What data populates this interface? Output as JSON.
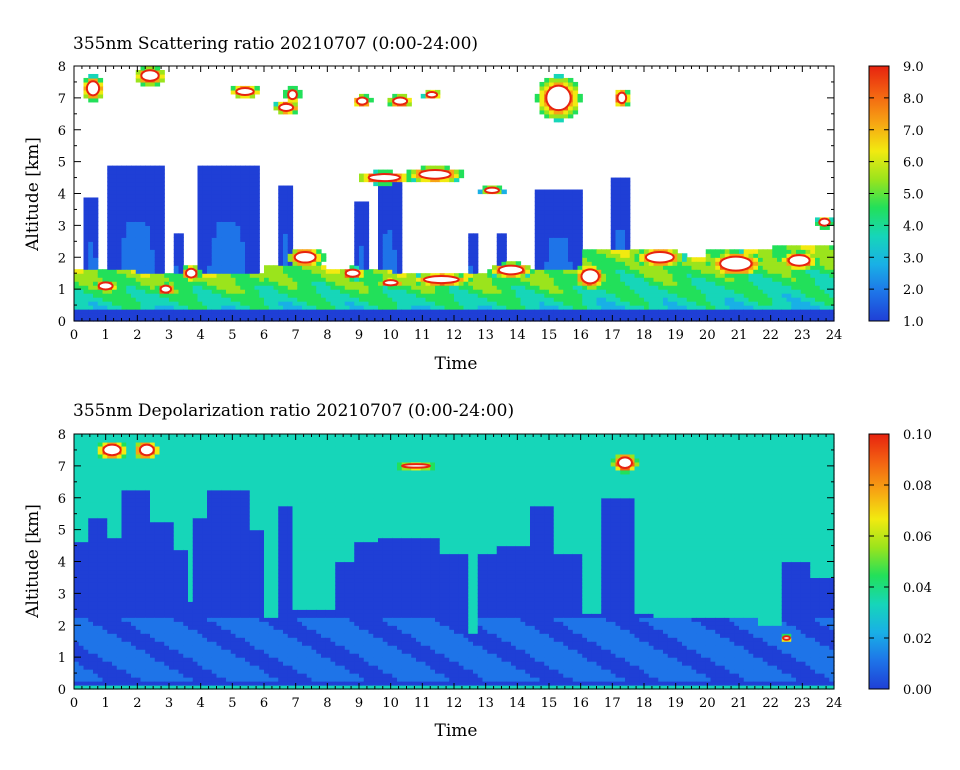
{
  "chart_data": [
    {
      "type": "heatmap",
      "title": "355nm Scattering ratio  20210707 (0:00-24:00)",
      "xlabel": "Time",
      "ylabel": "Altitude [km]",
      "xlim": [
        0,
        24
      ],
      "ylim": [
        0,
        8
      ],
      "x_ticks": [
        "0",
        "1",
        "2",
        "3",
        "4",
        "5",
        "6",
        "7",
        "8",
        "9",
        "10",
        "11",
        "12",
        "13",
        "14",
        "15",
        "16",
        "17",
        "18",
        "19",
        "20",
        "21",
        "22",
        "23",
        "24"
      ],
      "y_ticks": [
        "0",
        "1",
        "2",
        "3",
        "4",
        "5",
        "6",
        "7",
        "8"
      ],
      "colorbar": {
        "range": [
          1.0,
          9.0
        ],
        "ticks": [
          "1.0",
          "2.0",
          "3.0",
          "4.0",
          "5.0",
          "6.0",
          "7.0",
          "8.0",
          "9.0"
        ],
        "colors": [
          "#1f3fd6",
          "#1e74e8",
          "#19b0e6",
          "#16d6b9",
          "#22e05a",
          "#9be41c",
          "#f2ea10",
          "#f7a413",
          "#f36312",
          "#e7230f"
        ]
      },
      "boundary_layer": [
        {
          "t0": 0,
          "t1": 2,
          "top": 1.6
        },
        {
          "t0": 2,
          "t1": 4,
          "top": 1.5
        },
        {
          "t0": 4,
          "t1": 6,
          "top": 1.5
        },
        {
          "t0": 6,
          "t1": 8,
          "top": 1.8
        },
        {
          "t0": 8,
          "t1": 10,
          "top": 1.6
        },
        {
          "t0": 10,
          "t1": 12,
          "top": 1.5
        },
        {
          "t0": 12,
          "t1": 14,
          "top": 1.5
        },
        {
          "t0": 14,
          "t1": 16,
          "top": 1.6
        },
        {
          "t0": 16,
          "t1": 18,
          "top": 2.2
        },
        {
          "t0": 18,
          "t1": 20,
          "top": 2.0
        },
        {
          "t0": 20,
          "t1": 22,
          "top": 2.2
        },
        {
          "t0": 22,
          "t1": 24,
          "top": 2.4
        }
      ],
      "plumes": [
        {
          "t0": 0.3,
          "t1": 0.8,
          "top": 3.9
        },
        {
          "t0": 1.1,
          "t1": 2.9,
          "top": 4.9
        },
        {
          "t0": 3.1,
          "t1": 3.4,
          "top": 2.7
        },
        {
          "t0": 3.9,
          "t1": 5.8,
          "top": 4.9
        },
        {
          "t0": 6.5,
          "t1": 6.9,
          "top": 4.3
        },
        {
          "t0": 8.9,
          "t1": 9.3,
          "top": 3.7
        },
        {
          "t0": 9.6,
          "t1": 10.3,
          "top": 4.5
        },
        {
          "t0": 12.4,
          "t1": 12.7,
          "top": 2.8
        },
        {
          "t0": 13.4,
          "t1": 13.6,
          "top": 2.8
        },
        {
          "t0": 14.6,
          "t1": 16.0,
          "top": 4.1
        },
        {
          "t0": 16.9,
          "t1": 17.6,
          "top": 4.5
        }
      ],
      "cloud_cells": [
        {
          "t": 0.6,
          "z": 7.3,
          "rt": 0.35,
          "rz": 0.4,
          "peak": 9
        },
        {
          "t": 2.4,
          "z": 7.7,
          "rt": 0.5,
          "rz": 0.3,
          "peak": 9
        },
        {
          "t": 5.4,
          "z": 7.2,
          "rt": 0.5,
          "rz": 0.2,
          "peak": 9
        },
        {
          "t": 6.7,
          "z": 6.7,
          "rt": 0.4,
          "rz": 0.2,
          "peak": 9
        },
        {
          "t": 6.9,
          "z": 7.1,
          "rt": 0.25,
          "rz": 0.25,
          "peak": 9
        },
        {
          "t": 9.1,
          "z": 6.9,
          "rt": 0.3,
          "rz": 0.2,
          "peak": 9
        },
        {
          "t": 10.3,
          "z": 6.9,
          "rt": 0.4,
          "rz": 0.2,
          "peak": 9
        },
        {
          "t": 11.3,
          "z": 7.1,
          "rt": 0.3,
          "rz": 0.15,
          "peak": 8
        },
        {
          "t": 15.3,
          "z": 7.0,
          "rt": 0.7,
          "rz": 0.7,
          "peak": 9
        },
        {
          "t": 17.3,
          "z": 7.0,
          "rt": 0.25,
          "rz": 0.3,
          "peak": 9
        },
        {
          "t": 9.8,
          "z": 4.5,
          "rt": 0.9,
          "rz": 0.2,
          "peak": 9
        },
        {
          "t": 11.4,
          "z": 4.6,
          "rt": 0.9,
          "rz": 0.25,
          "peak": 9
        },
        {
          "t": 13.2,
          "z": 4.1,
          "rt": 0.4,
          "rz": 0.15,
          "peak": 7
        },
        {
          "t": 1.0,
          "z": 1.1,
          "rt": 0.4,
          "rz": 0.2,
          "peak": 9
        },
        {
          "t": 2.9,
          "z": 1.0,
          "rt": 0.3,
          "rz": 0.2,
          "peak": 9
        },
        {
          "t": 3.7,
          "z": 1.5,
          "rt": 0.3,
          "rz": 0.25,
          "peak": 9
        },
        {
          "t": 7.3,
          "z": 2.0,
          "rt": 0.6,
          "rz": 0.3,
          "peak": 9
        },
        {
          "t": 8.8,
          "z": 1.5,
          "rt": 0.4,
          "rz": 0.2,
          "peak": 9
        },
        {
          "t": 10.0,
          "z": 1.2,
          "rt": 0.4,
          "rz": 0.15,
          "peak": 9
        },
        {
          "t": 11.6,
          "z": 1.3,
          "rt": 1.0,
          "rz": 0.2,
          "peak": 9
        },
        {
          "t": 13.8,
          "z": 1.6,
          "rt": 0.7,
          "rz": 0.25,
          "peak": 9
        },
        {
          "t": 16.3,
          "z": 1.4,
          "rt": 0.5,
          "rz": 0.4,
          "peak": 9
        },
        {
          "t": 18.5,
          "z": 2.0,
          "rt": 0.8,
          "rz": 0.3,
          "peak": 9
        },
        {
          "t": 20.9,
          "z": 1.8,
          "rt": 0.9,
          "rz": 0.4,
          "peak": 9
        },
        {
          "t": 22.9,
          "z": 1.9,
          "rt": 0.6,
          "rz": 0.3,
          "peak": 9
        },
        {
          "t": 23.7,
          "z": 3.1,
          "rt": 0.3,
          "rz": 0.2,
          "peak": 7
        }
      ]
    },
    {
      "type": "heatmap",
      "title": "355nm Depolarization ratio  20210707 (0:00-24:00)",
      "xlabel": "Time",
      "ylabel": "Altitude [km]",
      "xlim": [
        0,
        24
      ],
      "ylim": [
        0,
        8
      ],
      "x_ticks": [
        "0",
        "1",
        "2",
        "3",
        "4",
        "5",
        "6",
        "7",
        "8",
        "9",
        "10",
        "11",
        "12",
        "13",
        "14",
        "15",
        "16",
        "17",
        "18",
        "19",
        "20",
        "21",
        "22",
        "23",
        "24"
      ],
      "y_ticks": [
        "0",
        "1",
        "2",
        "3",
        "4",
        "5",
        "6",
        "7",
        "8"
      ],
      "colorbar": {
        "range": [
          0.0,
          0.1
        ],
        "ticks": [
          "0.00",
          "0.02",
          "0.04",
          "0.06",
          "0.08",
          "0.10"
        ],
        "colors": [
          "#1f3fd6",
          "#1e74e8",
          "#19b0e6",
          "#16d6b9",
          "#22e05a",
          "#9be41c",
          "#f2ea10",
          "#f7a413",
          "#f36312",
          "#e7230f"
        ]
      },
      "background_value": 0.04,
      "low_depol_columns": [
        {
          "t0": 0.0,
          "t1": 0.4,
          "top": 4.6
        },
        {
          "t0": 0.4,
          "t1": 1.1,
          "top": 5.4
        },
        {
          "t0": 1.1,
          "t1": 1.5,
          "top": 4.8
        },
        {
          "t0": 1.5,
          "t1": 2.4,
          "top": 6.2
        },
        {
          "t0": 2.4,
          "t1": 3.1,
          "top": 5.2
        },
        {
          "t0": 3.1,
          "t1": 3.6,
          "top": 4.4
        },
        {
          "t0": 3.6,
          "t1": 3.8,
          "top": 2.8
        },
        {
          "t0": 3.8,
          "t1": 4.2,
          "top": 5.4
        },
        {
          "t0": 4.2,
          "t1": 5.5,
          "top": 6.2
        },
        {
          "t0": 5.5,
          "t1": 6.0,
          "top": 5.0
        },
        {
          "t0": 6.0,
          "t1": 6.5,
          "top": 2.3
        },
        {
          "t0": 6.5,
          "t1": 6.9,
          "top": 5.8
        },
        {
          "t0": 6.9,
          "t1": 8.2,
          "top": 2.5
        },
        {
          "t0": 8.2,
          "t1": 8.8,
          "top": 4.0
        },
        {
          "t0": 8.8,
          "t1": 9.6,
          "top": 4.6
        },
        {
          "t0": 9.6,
          "t1": 11.5,
          "top": 4.8
        },
        {
          "t0": 11.5,
          "t1": 12.4,
          "top": 4.3
        },
        {
          "t0": 12.4,
          "t1": 12.7,
          "top": 1.8
        },
        {
          "t0": 12.7,
          "t1": 13.3,
          "top": 4.2
        },
        {
          "t0": 13.3,
          "t1": 14.4,
          "top": 4.5
        },
        {
          "t0": 14.4,
          "t1": 15.2,
          "top": 5.7
        },
        {
          "t0": 15.2,
          "t1": 16.0,
          "top": 4.2
        },
        {
          "t0": 16.0,
          "t1": 16.7,
          "top": 2.4
        },
        {
          "t0": 16.7,
          "t1": 17.7,
          "top": 6.0
        },
        {
          "t0": 17.7,
          "t1": 18.3,
          "top": 2.4
        },
        {
          "t0": 18.3,
          "t1": 21.6,
          "top": 2.3
        },
        {
          "t0": 21.6,
          "t1": 22.3,
          "top": 2.0
        },
        {
          "t0": 22.3,
          "t1": 23.2,
          "top": 4.0
        },
        {
          "t0": 23.2,
          "t1": 24.0,
          "top": 3.5
        }
      ],
      "high_depol_cells": [
        {
          "t": 1.2,
          "z": 7.5,
          "rt": 0.5,
          "rz": 0.3,
          "peak": 0.1
        },
        {
          "t": 2.3,
          "z": 7.5,
          "rt": 0.4,
          "rz": 0.3,
          "peak": 0.1
        },
        {
          "t": 17.4,
          "z": 7.1,
          "rt": 0.4,
          "rz": 0.3,
          "peak": 0.1
        },
        {
          "t": 10.8,
          "z": 7.0,
          "rt": 0.8,
          "rz": 0.1,
          "peak": 0.08
        },
        {
          "t": 22.5,
          "z": 1.6,
          "rt": 0.2,
          "rz": 0.1,
          "peak": 0.08
        }
      ]
    }
  ]
}
